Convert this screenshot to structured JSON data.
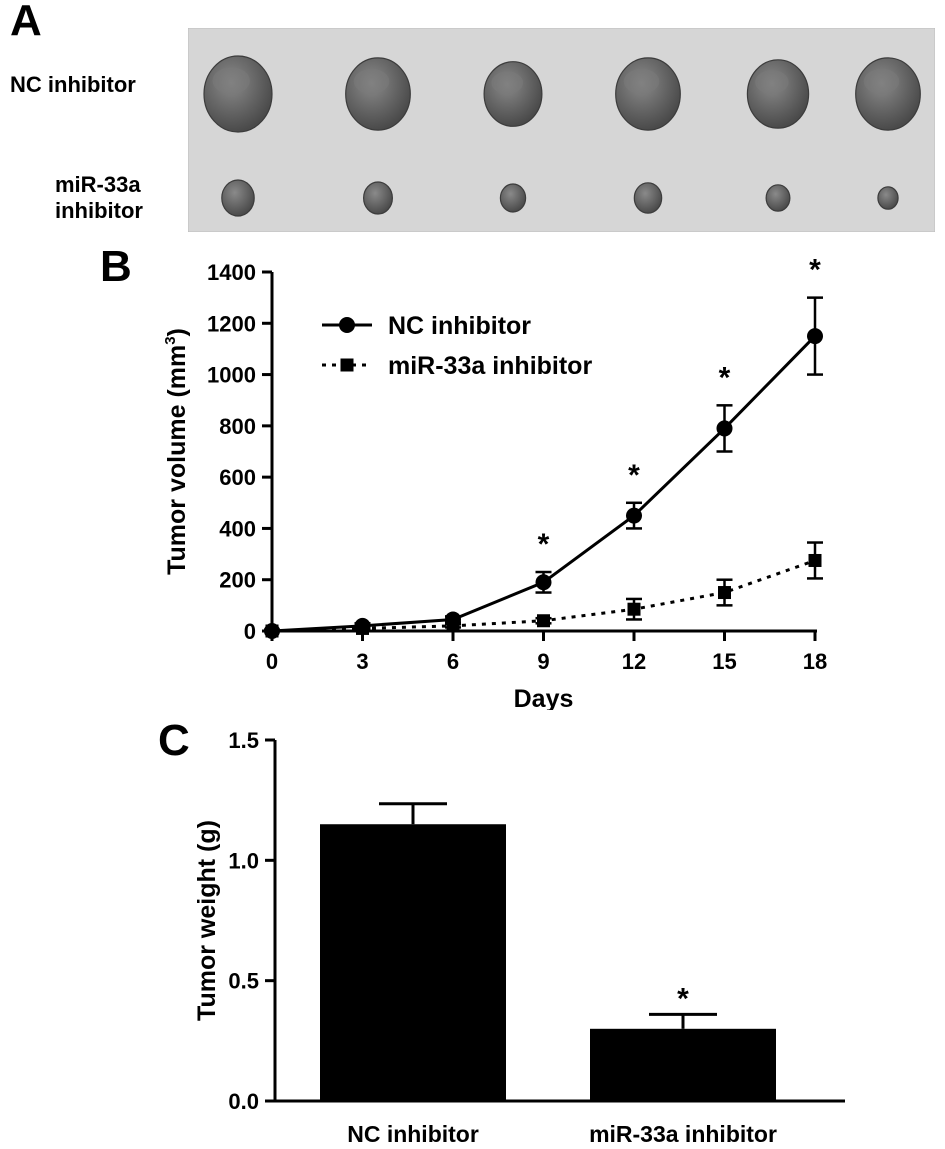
{
  "panels": {
    "a": {
      "letter": "A",
      "rows": [
        {
          "label_lines": [
            "NC inhibitor"
          ],
          "tumor_sizes": [
            1.0,
            0.95,
            0.85,
            0.95,
            0.9,
            0.95
          ]
        },
        {
          "label_lines": [
            "miR-33a",
            "inhibitor"
          ],
          "tumor_sizes": [
            0.45,
            0.4,
            0.35,
            0.38,
            0.33,
            0.28
          ]
        }
      ]
    },
    "b": {
      "letter": "B"
    },
    "c": {
      "letter": "C"
    }
  },
  "chart_data": [
    {
      "type": "line",
      "xlabel": "Days",
      "ylabel": "Tumor volume (mm",
      "ylabel_sup": "3",
      "ylabel_close": ")",
      "xlim": [
        0,
        18
      ],
      "ylim": [
        0,
        1400
      ],
      "xticks": [
        0,
        3,
        6,
        9,
        12,
        15,
        18
      ],
      "yticks": [
        0,
        200,
        400,
        600,
        800,
        1000,
        1200,
        1400
      ],
      "legend_position": "top-left",
      "significance_marker": "*",
      "significant_x": [
        9,
        12,
        15,
        18
      ],
      "series": [
        {
          "name": "NC inhibitor",
          "line": "solid",
          "marker": "circle",
          "color": "#000000",
          "x": [
            0,
            3,
            6,
            9,
            12,
            15,
            18
          ],
          "y": [
            0,
            20,
            45,
            190,
            450,
            790,
            1150
          ],
          "err": [
            5,
            10,
            12,
            40,
            50,
            90,
            150
          ]
        },
        {
          "name": "miR-33a inhibitor",
          "line": "dotted",
          "marker": "square",
          "color": "#000000",
          "x": [
            0,
            3,
            6,
            9,
            12,
            15,
            18
          ],
          "y": [
            0,
            10,
            20,
            40,
            85,
            150,
            275
          ],
          "err": [
            3,
            5,
            6,
            10,
            40,
            50,
            70
          ]
        }
      ]
    },
    {
      "type": "bar",
      "categories": [
        "NC inhibitor",
        "miR-33a inhibitor"
      ],
      "values": [
        1.15,
        0.3
      ],
      "errors": [
        0.085,
        0.06
      ],
      "ylabel": "Tumor weight (g)",
      "ylim": [
        0,
        1.5
      ],
      "yticks": [
        "0.0",
        "0.5",
        "1.0",
        "1.5"
      ],
      "bar_color": "#000000",
      "significance": [
        "",
        "*"
      ]
    }
  ]
}
